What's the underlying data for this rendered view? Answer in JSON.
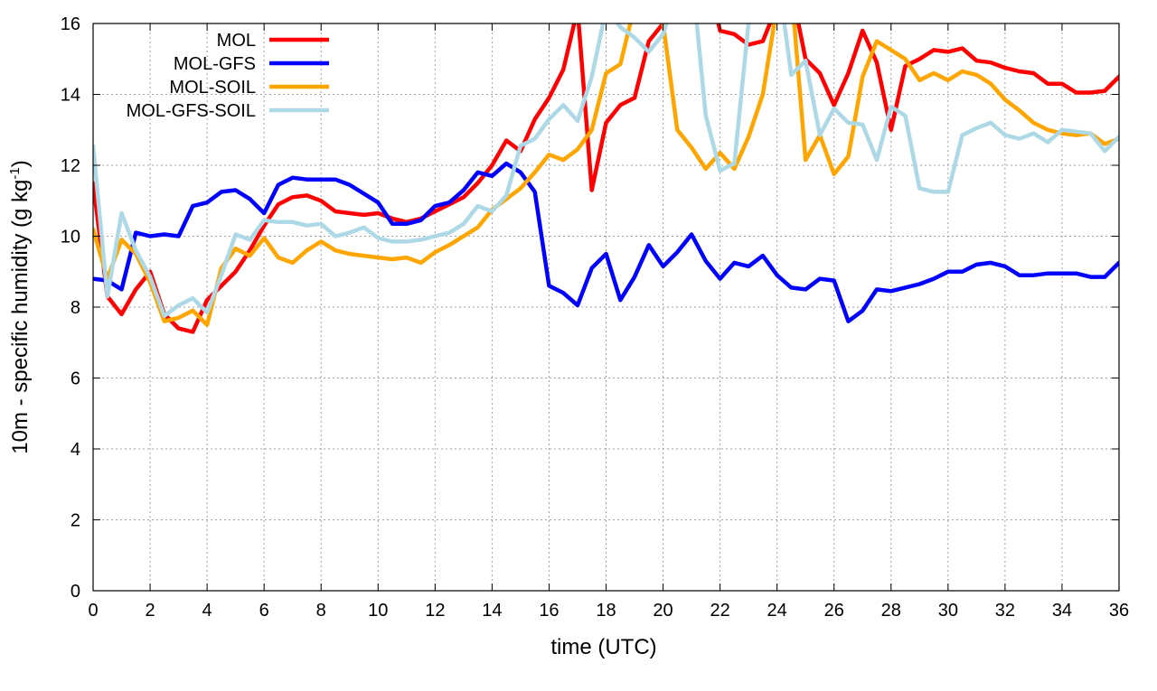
{
  "chart_data": {
    "type": "line",
    "xlabel": "time (UTC)",
    "ylabel": {
      "main": "10m - specific humidity (g kg",
      "sup": "-1",
      "end": ")"
    },
    "xlim": [
      0,
      36
    ],
    "ylim": [
      0,
      16
    ],
    "x_ticks": [
      "0",
      "2",
      "4",
      "6",
      "8",
      "10",
      "12",
      "14",
      "16",
      "18",
      "20",
      "22",
      "24",
      "26",
      "28",
      "30",
      "32",
      "34",
      "36"
    ],
    "y_ticks": [
      "0",
      "2",
      "4",
      "6",
      "8",
      "10",
      "12",
      "14",
      "16"
    ],
    "grid": true,
    "legend_position": "top-left",
    "series": [
      {
        "name": "MOL",
        "color": "#ff0000",
        "points": [
          [
            0,
            11.5
          ],
          [
            0.5,
            8.3
          ],
          [
            1,
            7.8
          ],
          [
            1.5,
            8.5
          ],
          [
            2,
            9.0
          ],
          [
            2.5,
            7.8
          ],
          [
            3,
            7.4
          ],
          [
            3.5,
            7.3
          ],
          [
            4,
            8.2
          ],
          [
            4.5,
            8.6
          ],
          [
            5,
            9.0
          ],
          [
            5.5,
            9.6
          ],
          [
            6,
            10.3
          ],
          [
            6.5,
            10.9
          ],
          [
            7,
            11.1
          ],
          [
            7.5,
            11.15
          ],
          [
            8,
            11.0
          ],
          [
            8.5,
            10.7
          ],
          [
            9,
            10.65
          ],
          [
            9.5,
            10.6
          ],
          [
            10,
            10.65
          ],
          [
            10.5,
            10.5
          ],
          [
            11,
            10.4
          ],
          [
            11.5,
            10.5
          ],
          [
            12,
            10.7
          ],
          [
            12.5,
            10.9
          ],
          [
            13,
            11.1
          ],
          [
            13.5,
            11.5
          ],
          [
            14,
            12.0
          ],
          [
            14.5,
            12.7
          ],
          [
            15,
            12.4
          ],
          [
            15.5,
            13.3
          ],
          [
            16,
            13.9
          ],
          [
            16.5,
            14.7
          ],
          [
            17,
            16.4
          ],
          [
            17.5,
            11.3
          ],
          [
            18,
            13.2
          ],
          [
            18.5,
            13.7
          ],
          [
            19,
            13.9
          ],
          [
            19.5,
            15.5
          ],
          [
            20,
            16.0
          ],
          [
            20.5,
            16.5
          ],
          [
            21,
            17.0
          ],
          [
            21.5,
            17.5
          ],
          [
            22,
            15.8
          ],
          [
            22.5,
            15.7
          ],
          [
            23,
            15.4
          ],
          [
            23.5,
            15.5
          ],
          [
            24,
            16.5
          ],
          [
            24.5,
            17.0
          ],
          [
            25,
            15.0
          ],
          [
            25.5,
            14.6
          ],
          [
            26,
            13.7
          ],
          [
            26.5,
            14.6
          ],
          [
            27,
            15.8
          ],
          [
            27.5,
            14.9
          ],
          [
            28,
            13.0
          ],
          [
            28.5,
            14.8
          ],
          [
            29,
            15.0
          ],
          [
            29.5,
            15.25
          ],
          [
            30,
            15.2
          ],
          [
            30.5,
            15.3
          ],
          [
            31,
            14.95
          ],
          [
            31.5,
            14.9
          ],
          [
            32,
            14.75
          ],
          [
            32.5,
            14.65
          ],
          [
            33,
            14.6
          ],
          [
            33.5,
            14.3
          ],
          [
            34,
            14.3
          ],
          [
            34.5,
            14.05
          ],
          [
            35,
            14.05
          ],
          [
            35.5,
            14.1
          ],
          [
            36,
            14.5
          ]
        ]
      },
      {
        "name": "MOL-GFS",
        "color": "#0000ff",
        "points": [
          [
            0,
            8.8
          ],
          [
            0.5,
            8.75
          ],
          [
            1,
            8.5
          ],
          [
            1.5,
            10.1
          ],
          [
            2,
            10.0
          ],
          [
            2.5,
            10.05
          ],
          [
            3,
            10.0
          ],
          [
            3.5,
            10.85
          ],
          [
            4,
            10.95
          ],
          [
            4.5,
            11.25
          ],
          [
            5,
            11.3
          ],
          [
            5.5,
            11.05
          ],
          [
            6,
            10.65
          ],
          [
            6.5,
            11.45
          ],
          [
            7,
            11.65
          ],
          [
            7.5,
            11.6
          ],
          [
            8,
            11.6
          ],
          [
            8.5,
            11.6
          ],
          [
            9,
            11.45
          ],
          [
            9.5,
            11.2
          ],
          [
            10,
            10.95
          ],
          [
            10.5,
            10.35
          ],
          [
            11,
            10.35
          ],
          [
            11.5,
            10.45
          ],
          [
            12,
            10.85
          ],
          [
            12.5,
            10.95
          ],
          [
            13,
            11.3
          ],
          [
            13.5,
            11.8
          ],
          [
            14,
            11.7
          ],
          [
            14.5,
            12.05
          ],
          [
            15,
            11.8
          ],
          [
            15.5,
            11.25
          ],
          [
            16,
            8.6
          ],
          [
            16.5,
            8.4
          ],
          [
            17,
            8.05
          ],
          [
            17.5,
            9.1
          ],
          [
            18,
            9.5
          ],
          [
            18.5,
            8.2
          ],
          [
            19,
            8.85
          ],
          [
            19.5,
            9.75
          ],
          [
            20,
            9.15
          ],
          [
            20.5,
            9.55
          ],
          [
            21,
            10.05
          ],
          [
            21.5,
            9.3
          ],
          [
            22,
            8.8
          ],
          [
            22.5,
            9.25
          ],
          [
            23,
            9.15
          ],
          [
            23.5,
            9.45
          ],
          [
            24,
            8.9
          ],
          [
            24.5,
            8.55
          ],
          [
            25,
            8.5
          ],
          [
            25.5,
            8.8
          ],
          [
            26,
            8.75
          ],
          [
            26.5,
            7.6
          ],
          [
            27,
            7.9
          ],
          [
            27.5,
            8.5
          ],
          [
            28,
            8.45
          ],
          [
            28.5,
            8.55
          ],
          [
            29,
            8.65
          ],
          [
            29.5,
            8.8
          ],
          [
            30,
            9.0
          ],
          [
            30.5,
            9.0
          ],
          [
            31,
            9.2
          ],
          [
            31.5,
            9.25
          ],
          [
            32,
            9.15
          ],
          [
            32.5,
            8.9
          ],
          [
            33,
            8.9
          ],
          [
            33.5,
            8.95
          ],
          [
            34,
            8.95
          ],
          [
            34.5,
            8.95
          ],
          [
            35,
            8.85
          ],
          [
            35.5,
            8.85
          ],
          [
            36,
            9.25
          ]
        ]
      },
      {
        "name": "MOL-SOIL",
        "color": "#ffa500",
        "points": [
          [
            0,
            10.2
          ],
          [
            0.5,
            8.8
          ],
          [
            1,
            9.9
          ],
          [
            1.5,
            9.5
          ],
          [
            2,
            8.7
          ],
          [
            2.5,
            7.6
          ],
          [
            3,
            7.7
          ],
          [
            3.5,
            7.9
          ],
          [
            4,
            7.5
          ],
          [
            4.5,
            9.1
          ],
          [
            5,
            9.65
          ],
          [
            5.5,
            9.45
          ],
          [
            6,
            9.95
          ],
          [
            6.5,
            9.4
          ],
          [
            7,
            9.25
          ],
          [
            7.5,
            9.6
          ],
          [
            8,
            9.85
          ],
          [
            8.5,
            9.6
          ],
          [
            9,
            9.5
          ],
          [
            9.5,
            9.45
          ],
          [
            10,
            9.4
          ],
          [
            10.5,
            9.35
          ],
          [
            11,
            9.4
          ],
          [
            11.5,
            9.25
          ],
          [
            12,
            9.55
          ],
          [
            12.5,
            9.75
          ],
          [
            13,
            10.0
          ],
          [
            13.5,
            10.25
          ],
          [
            14,
            10.75
          ],
          [
            14.5,
            11.05
          ],
          [
            15,
            11.35
          ],
          [
            15.5,
            11.8
          ],
          [
            16,
            12.3
          ],
          [
            16.5,
            12.15
          ],
          [
            17,
            12.45
          ],
          [
            17.5,
            13.0
          ],
          [
            18,
            14.6
          ],
          [
            18.5,
            14.85
          ],
          [
            19,
            16.5
          ],
          [
            19.5,
            17.0
          ],
          [
            20,
            16.0
          ],
          [
            20.5,
            13.0
          ],
          [
            21,
            12.5
          ],
          [
            21.5,
            11.9
          ],
          [
            22,
            12.35
          ],
          [
            22.5,
            11.9
          ],
          [
            23,
            12.8
          ],
          [
            23.5,
            14.0
          ],
          [
            24,
            16.5
          ],
          [
            24.5,
            17.0
          ],
          [
            25,
            12.15
          ],
          [
            25.5,
            12.85
          ],
          [
            26,
            11.75
          ],
          [
            26.5,
            12.25
          ],
          [
            27,
            14.5
          ],
          [
            27.5,
            15.5
          ],
          [
            28,
            15.25
          ],
          [
            28.5,
            15.0
          ],
          [
            29,
            14.4
          ],
          [
            29.5,
            14.6
          ],
          [
            30,
            14.4
          ],
          [
            30.5,
            14.65
          ],
          [
            31,
            14.55
          ],
          [
            31.5,
            14.3
          ],
          [
            32,
            13.85
          ],
          [
            32.5,
            13.55
          ],
          [
            33,
            13.2
          ],
          [
            33.5,
            13.0
          ],
          [
            34,
            12.9
          ],
          [
            34.5,
            12.85
          ],
          [
            35,
            12.9
          ],
          [
            35.5,
            12.6
          ],
          [
            36,
            12.75
          ]
        ]
      },
      {
        "name": "MOL-GFS-SOIL",
        "color": "#add8e6",
        "points": [
          [
            0,
            12.55
          ],
          [
            0.5,
            8.3
          ],
          [
            1,
            10.65
          ],
          [
            1.5,
            9.6
          ],
          [
            2,
            8.85
          ],
          [
            2.5,
            7.75
          ],
          [
            3,
            8.05
          ],
          [
            3.5,
            8.25
          ],
          [
            4,
            7.85
          ],
          [
            4.5,
            8.9
          ],
          [
            5,
            10.05
          ],
          [
            5.5,
            9.9
          ],
          [
            6,
            10.45
          ],
          [
            6.5,
            10.4
          ],
          [
            7,
            10.4
          ],
          [
            7.5,
            10.3
          ],
          [
            8,
            10.35
          ],
          [
            8.5,
            10.0
          ],
          [
            9,
            10.1
          ],
          [
            9.5,
            10.25
          ],
          [
            10,
            9.95
          ],
          [
            10.5,
            9.85
          ],
          [
            11,
            9.85
          ],
          [
            11.5,
            9.9
          ],
          [
            12,
            10.0
          ],
          [
            12.5,
            10.1
          ],
          [
            13,
            10.35
          ],
          [
            13.5,
            10.85
          ],
          [
            14,
            10.7
          ],
          [
            14.5,
            11.15
          ],
          [
            15,
            12.55
          ],
          [
            15.5,
            12.75
          ],
          [
            16,
            13.3
          ],
          [
            16.5,
            13.7
          ],
          [
            17,
            13.25
          ],
          [
            17.5,
            14.5
          ],
          [
            18,
            16.4
          ],
          [
            18.5,
            15.9
          ],
          [
            19,
            15.6
          ],
          [
            19.5,
            15.2
          ],
          [
            20,
            15.7
          ],
          [
            20.5,
            17.0
          ],
          [
            21,
            17.5
          ],
          [
            21.5,
            13.4
          ],
          [
            22,
            11.85
          ],
          [
            22.5,
            12.05
          ],
          [
            23,
            16.0
          ],
          [
            23.5,
            17.0
          ],
          [
            24,
            17.5
          ],
          [
            24.5,
            14.55
          ],
          [
            25,
            14.95
          ],
          [
            25.5,
            12.85
          ],
          [
            26,
            13.6
          ],
          [
            26.5,
            13.2
          ],
          [
            27,
            13.15
          ],
          [
            27.5,
            12.15
          ],
          [
            28,
            13.65
          ],
          [
            28.5,
            13.4
          ],
          [
            29,
            11.35
          ],
          [
            29.5,
            11.25
          ],
          [
            30,
            11.25
          ],
          [
            30.5,
            12.85
          ],
          [
            31,
            13.05
          ],
          [
            31.5,
            13.2
          ],
          [
            32,
            12.85
          ],
          [
            32.5,
            12.75
          ],
          [
            33,
            12.9
          ],
          [
            33.5,
            12.65
          ],
          [
            34,
            13.0
          ],
          [
            34.5,
            12.95
          ],
          [
            35,
            12.9
          ],
          [
            35.5,
            12.4
          ],
          [
            36,
            12.8
          ]
        ]
      }
    ]
  }
}
